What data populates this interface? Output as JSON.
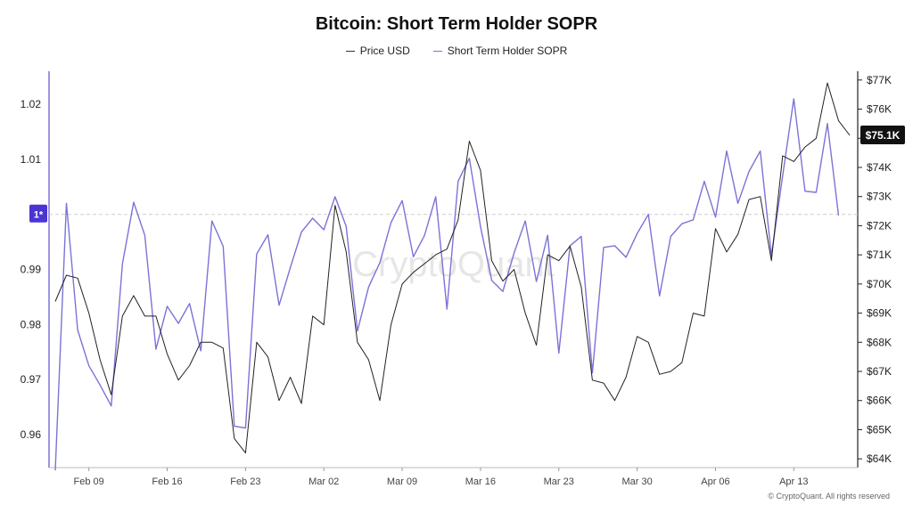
{
  "title": "Bitcoin: Short Term Holder SOPR",
  "legend": {
    "price_label": "Price USD",
    "sopr_label": "Short Term Holder SOPR"
  },
  "watermark": "CryptoQuant",
  "footer": "© CryptoQuant. All rights reserved",
  "colors": {
    "price": "#222222",
    "sopr": "#7b73d6",
    "badge": "#4a35d4",
    "price_badge": "#111111"
  },
  "chart_data": {
    "type": "line",
    "x_ticks": [
      "Feb 09",
      "Feb 16",
      "Feb 23",
      "Mar 02",
      "Mar 09",
      "Mar 16",
      "Mar 23",
      "Mar 30",
      "Apr 06",
      "Apr 13"
    ],
    "left_axis": {
      "ticks": [
        "1.02",
        "1.01",
        "1*",
        "0.99",
        "0.98",
        "0.97",
        "0.96"
      ],
      "ylim": [
        0.954,
        1.026
      ],
      "reference_value": 1.0,
      "reference_label": "1*"
    },
    "right_axis": {
      "ticks": [
        "$77K",
        "$76K",
        "$75K",
        "$74K",
        "$73K",
        "$72K",
        "$71K",
        "$70K",
        "$69K",
        "$68K",
        "$67K",
        "$66K",
        "$65K",
        "$64K"
      ],
      "ylim": [
        63700,
        77300
      ],
      "current_price_label": "$75.1K"
    },
    "x_start": "2025-02-06",
    "series": [
      {
        "name": "Short Term Holder SOPR",
        "axis": "left",
        "values": [
          0.9535,
          1.002,
          0.979,
          0.9725,
          0.969,
          0.9652,
          0.991,
          1.0022,
          0.9962,
          0.9755,
          0.9833,
          0.9802,
          0.9838,
          0.9752,
          0.9988,
          0.9942,
          0.9615,
          0.9612,
          0.9928,
          0.9963,
          0.9835,
          0.9903,
          0.9968,
          0.9993,
          0.9972,
          1.0032,
          0.9978,
          0.9788,
          0.9868,
          0.9912,
          0.9985,
          1.0025,
          0.9923,
          0.9962,
          1.0032,
          0.9828,
          1.006,
          1.0102,
          0.9978,
          0.988,
          0.986,
          0.993,
          0.9988,
          0.9878,
          0.9962,
          0.9748,
          0.9943,
          0.996,
          0.9712,
          0.994,
          0.9943,
          0.9922,
          0.9965,
          1.0,
          0.9852,
          0.996,
          0.9983,
          0.999,
          1.006,
          0.9995,
          1.0115,
          1.002,
          1.0078,
          1.0115,
          0.9925,
          1.007,
          1.021,
          1.0042,
          1.004,
          1.0165,
          0.9998
        ]
      },
      {
        "name": "Price USD",
        "axis": "right",
        "values": [
          69400,
          70300,
          70200,
          69000,
          67400,
          66200,
          68900,
          69600,
          68900,
          68900,
          67600,
          66700,
          67200,
          68000,
          68000,
          67800,
          64700,
          64200,
          68000,
          67500,
          66000,
          66800,
          65900,
          68900,
          68600,
          72700,
          71100,
          68000,
          67400,
          66000,
          68600,
          70000,
          70400,
          70700,
          71000,
          71200,
          72200,
          74900,
          73900,
          70800,
          70100,
          70500,
          69000,
          67900,
          71000,
          70800,
          71300,
          69900,
          66700,
          66600,
          66000,
          66800,
          68200,
          68000,
          66900,
          67000,
          67300,
          69000,
          68900,
          71900,
          71100,
          71700,
          72900,
          73000,
          70800,
          74400,
          74200,
          74700,
          75000,
          76900,
          75600,
          75100
        ]
      }
    ],
    "grid": false,
    "legend_position": "top-center"
  }
}
